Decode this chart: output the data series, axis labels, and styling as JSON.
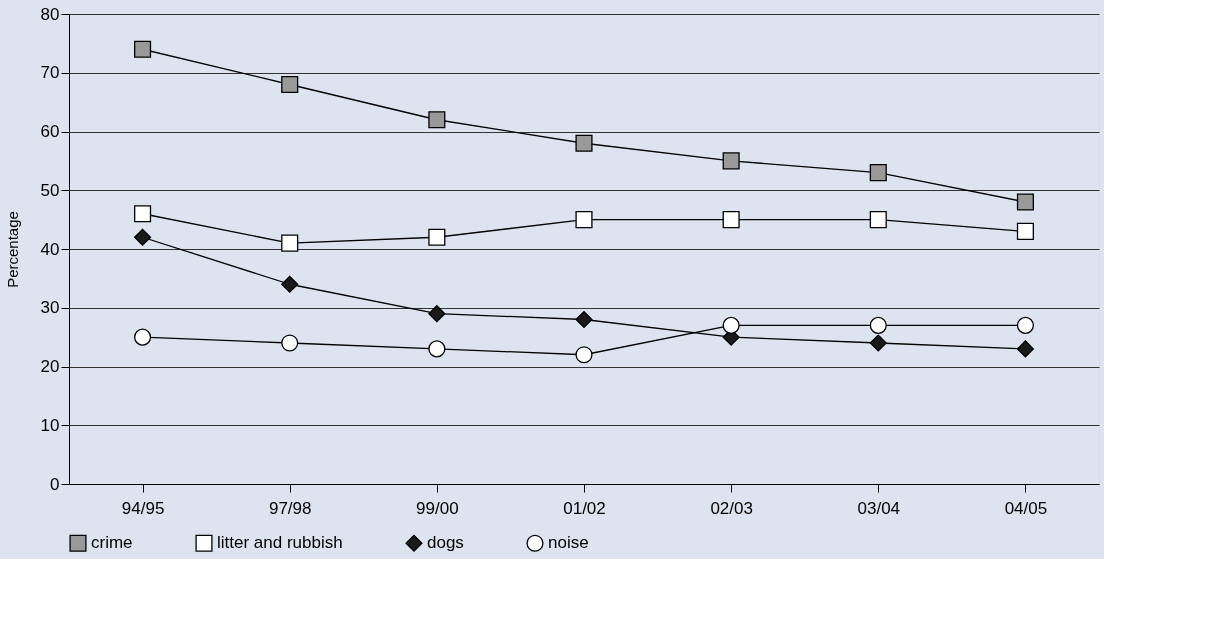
{
  "chart_data": {
    "type": "line",
    "ylabel": "Percentage",
    "categories": [
      "94/95",
      "97/98",
      "99/00",
      "01/02",
      "02/03",
      "03/04",
      "04/05"
    ],
    "series": [
      {
        "name": "crime",
        "color": "#999999",
        "marker": "square",
        "values": [
          74,
          68,
          62,
          58,
          55,
          53,
          48
        ]
      },
      {
        "name": "litter and rubbish",
        "color": "#ffffff",
        "marker": "square",
        "values": [
          46,
          41,
          42,
          45,
          45,
          45,
          43
        ]
      },
      {
        "name": "dogs",
        "color": "#1a1a1a",
        "marker": "diamond",
        "values": [
          42,
          34,
          29,
          28,
          25,
          24,
          23
        ]
      },
      {
        "name": "noise",
        "color": "#ffffff",
        "marker": "circle",
        "values": [
          25,
          24,
          23,
          22,
          27,
          27,
          27
        ]
      }
    ],
    "ylim": [
      0,
      80
    ],
    "yticks": [
      0,
      10,
      20,
      30,
      40,
      50,
      60,
      70,
      80
    ],
    "grid": "y",
    "legend": "bottom",
    "line_style": "solid"
  }
}
